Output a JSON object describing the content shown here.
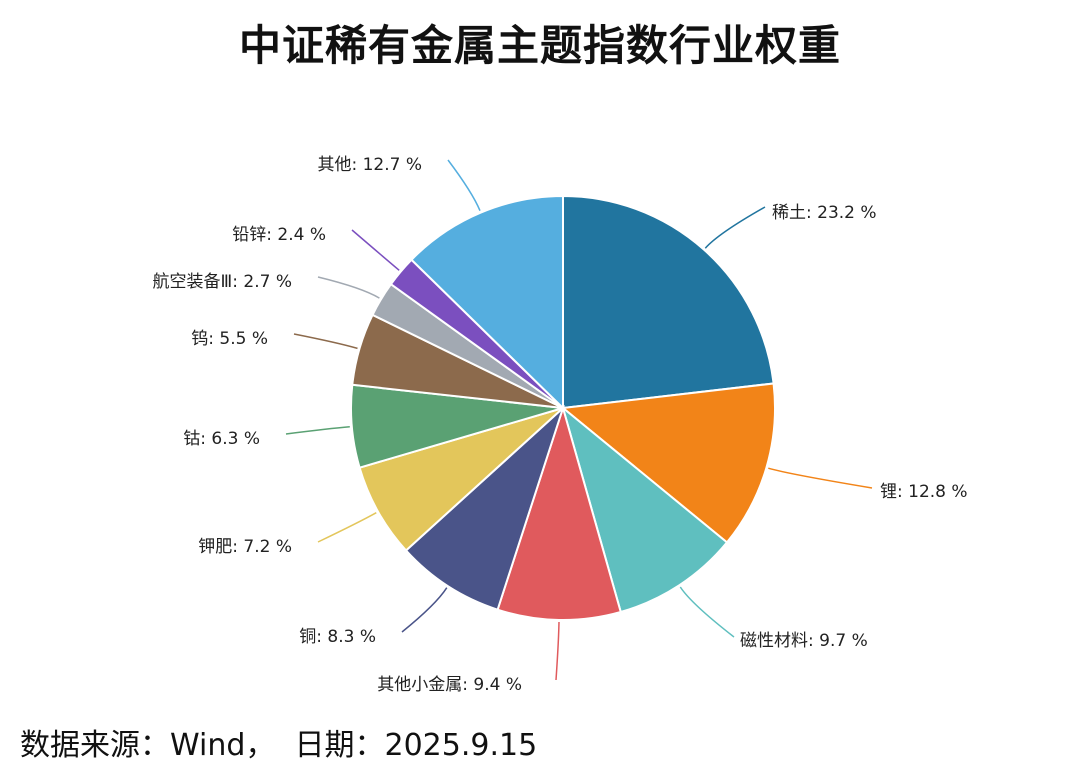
{
  "title": "中证稀有金属主题指数行业权重",
  "footer": {
    "source_label": "数据来源：Wind，",
    "date_label": "日期：2025.9.15"
  },
  "chart_data": {
    "type": "pie",
    "title": "中证稀有金属主题指数行业权重",
    "unit": "%",
    "slices": [
      {
        "label": "稀土",
        "value": 23.2,
        "color": "#21759f"
      },
      {
        "label": "锂",
        "value": 12.8,
        "color": "#f28418"
      },
      {
        "label": "磁性材料",
        "value": 9.7,
        "color": "#5fbfbf"
      },
      {
        "label": "其他小金属",
        "value": 9.4,
        "color": "#e05a5d"
      },
      {
        "label": "铜",
        "value": 8.3,
        "color": "#4a5489"
      },
      {
        "label": "钾肥",
        "value": 7.2,
        "color": "#e3c65b"
      },
      {
        "label": "钴",
        "value": 6.3,
        "color": "#5aa173"
      },
      {
        "label": "钨",
        "value": 5.5,
        "color": "#8c6a4c"
      },
      {
        "label": "航空装备Ⅲ",
        "value": 2.7,
        "color": "#a2a9b2"
      },
      {
        "label": "铅锌",
        "value": 2.4,
        "color": "#7b4fbf"
      },
      {
        "label": "其他",
        "value": 12.7,
        "color": "#55aedf"
      }
    ]
  }
}
